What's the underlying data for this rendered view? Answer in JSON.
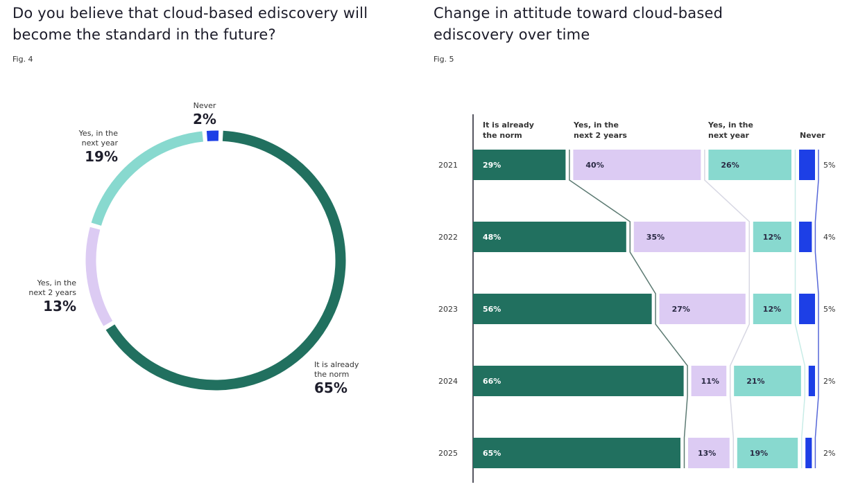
{
  "colors": {
    "norm": "#21705f",
    "next_2_years": "#dccbf3",
    "next_year": "#88d9cf",
    "never": "#1d3fe6"
  },
  "chart_data": [
    {
      "type": "pie",
      "variant": "donut",
      "title": "Do you believe that cloud-based ediscovery will become the standard in the future?",
      "figure_label": "Fig. 4",
      "slices": [
        {
          "label": "Never",
          "value": 2,
          "value_label": "2%",
          "color": "#1d3fe6"
        },
        {
          "label": "It is already the norm",
          "value": 65,
          "value_label": "65%",
          "color": "#21705f"
        },
        {
          "label": "Yes, in the next 2 years",
          "value": 13,
          "value_label": "13%",
          "color": "#dccbf3"
        },
        {
          "label": "Yes, in the next year",
          "value": 19,
          "value_label": "19%",
          "color": "#88d9cf"
        }
      ]
    },
    {
      "type": "bar",
      "orientation": "horizontal",
      "stacked": true,
      "title": "Change in attitude toward cloud-based ediscovery over time",
      "figure_label": "Fig. 5",
      "categories": [
        "2021",
        "2022",
        "2023",
        "2024",
        "2025"
      ],
      "series": [
        {
          "name": "It is already the norm",
          "values": [
            29,
            48,
            56,
            66,
            65
          ],
          "color": "#21705f"
        },
        {
          "name": "Yes, in the next 2 years",
          "values": [
            40,
            35,
            27,
            11,
            13
          ],
          "color": "#dccbf3"
        },
        {
          "name": "Yes, in the next year",
          "values": [
            26,
            12,
            12,
            21,
            19
          ],
          "color": "#88d9cf"
        },
        {
          "name": "Never",
          "values": [
            5,
            4,
            5,
            2,
            2
          ],
          "color": "#1d3fe6"
        }
      ]
    }
  ]
}
